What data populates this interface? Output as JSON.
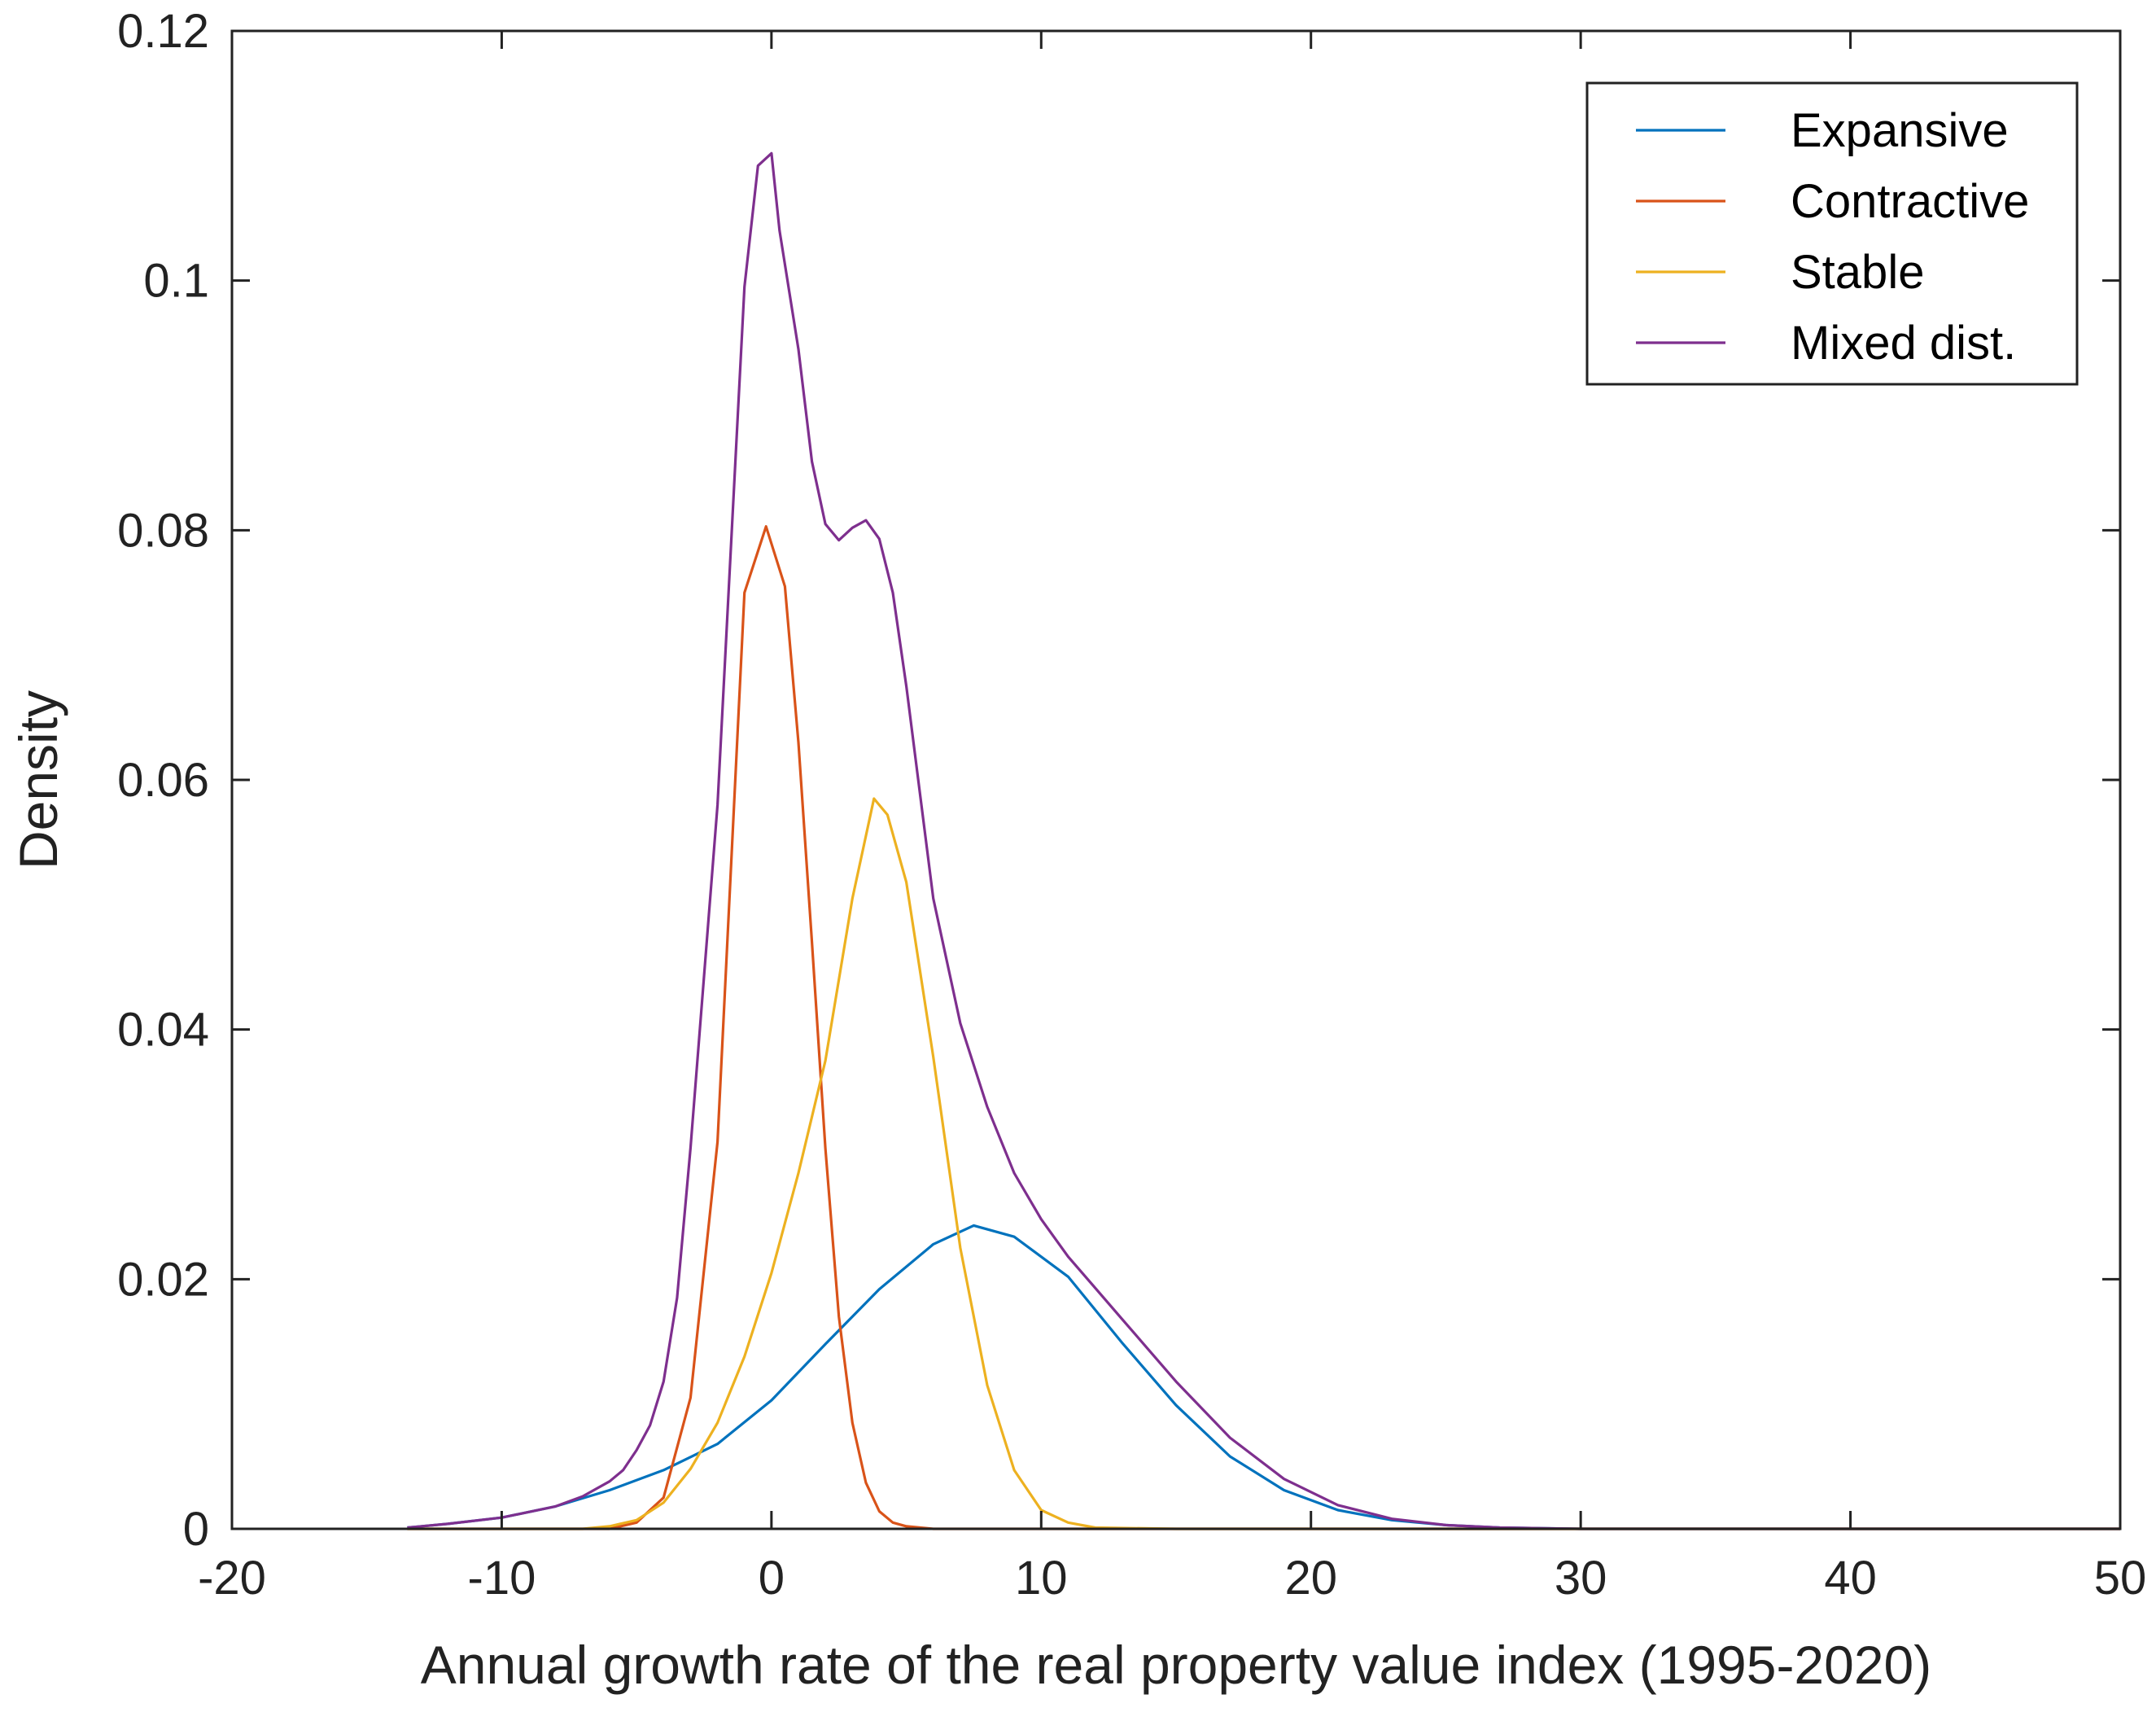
{
  "chart_data": {
    "type": "line",
    "title": "",
    "xlabel": "Annual growth rate of the real property value index (1995-2020)",
    "ylabel": "Density",
    "xlim": [
      -20,
      50
    ],
    "ylim": [
      0,
      0.12
    ],
    "xticks": [
      -20,
      -10,
      0,
      10,
      20,
      30,
      40,
      50
    ],
    "xtick_labels": [
      "-20",
      "-10",
      "0",
      "10",
      "20",
      "30",
      "40",
      "50"
    ],
    "yticks": [
      0,
      0.02,
      0.04,
      0.06,
      0.08,
      0.1,
      0.12
    ],
    "ytick_labels": [
      "0",
      "0.02",
      "0.04",
      "0.06",
      "0.08",
      "0.1",
      "0.12"
    ],
    "grid": false,
    "legend_position": "top-right",
    "series": [
      {
        "name": "Expansive",
        "color": "#0072BD",
        "x": [
          -13.5,
          -12,
          -10,
          -8,
          -6,
          -4,
          -2,
          0,
          2,
          4,
          6,
          7.5,
          9,
          11,
          13,
          15,
          17,
          19,
          21,
          23,
          25,
          27,
          30,
          35,
          40,
          50
        ],
        "y": [
          0.0001,
          0.0004,
          0.0009,
          0.0018,
          0.0031,
          0.0047,
          0.0068,
          0.0103,
          0.0148,
          0.0192,
          0.0228,
          0.0243,
          0.0234,
          0.0202,
          0.0149,
          0.0099,
          0.0058,
          0.0031,
          0.0015,
          0.0007,
          0.0003,
          0.0001,
          0,
          0,
          0,
          0
        ]
      },
      {
        "name": "Contractive",
        "color": "#D95319",
        "x": [
          -13.5,
          -6,
          -5,
          -4,
          -3,
          -2,
          -1,
          -0.2,
          0.5,
          1,
          1.5,
          2,
          2.5,
          3,
          3.5,
          4,
          4.5,
          5,
          6,
          10,
          50
        ],
        "y": [
          0,
          0,
          0.0005,
          0.0025,
          0.0105,
          0.031,
          0.075,
          0.0803,
          0.0755,
          0.063,
          0.047,
          0.0305,
          0.017,
          0.0085,
          0.0037,
          0.0014,
          0.0005,
          0.0002,
          0,
          0,
          0
        ]
      },
      {
        "name": "Stable",
        "color": "#EDB120",
        "x": [
          -13.5,
          -7,
          -6,
          -5,
          -4,
          -3,
          -2,
          -1,
          0,
          1,
          2,
          3,
          3.8,
          4.3,
          5,
          6,
          7,
          8,
          9,
          10,
          11,
          12,
          15,
          50
        ],
        "y": [
          0,
          0,
          0.0002,
          0.0007,
          0.0021,
          0.0048,
          0.0085,
          0.0138,
          0.0205,
          0.0285,
          0.0375,
          0.0505,
          0.0585,
          0.0572,
          0.0518,
          0.0378,
          0.0225,
          0.0115,
          0.0047,
          0.0015,
          0.0005,
          0.0001,
          0,
          0
        ]
      },
      {
        "name": "Mixed dist.",
        "color": "#7E2F8E",
        "x": [
          -13.5,
          -12,
          -10,
          -8,
          -7,
          -6,
          -5.5,
          -5,
          -4.5,
          -4,
          -3.5,
          -3,
          -2,
          -1,
          -0.5,
          0,
          0.3,
          1,
          1.5,
          2,
          2.5,
          3,
          3.5,
          4,
          4.5,
          5,
          6,
          7,
          8,
          9,
          10,
          11,
          12,
          13,
          15,
          17,
          19,
          21,
          23,
          25,
          27,
          30,
          35,
          40,
          50
        ],
        "y": [
          0.0001,
          0.0004,
          0.0009,
          0.0018,
          0.0026,
          0.0038,
          0.0047,
          0.0063,
          0.0083,
          0.0118,
          0.0185,
          0.0305,
          0.058,
          0.0995,
          0.1092,
          0.1102,
          0.104,
          0.0945,
          0.0855,
          0.0805,
          0.0792,
          0.0802,
          0.0808,
          0.0793,
          0.075,
          0.0675,
          0.0505,
          0.0405,
          0.0338,
          0.0285,
          0.0248,
          0.0218,
          0.0193,
          0.0168,
          0.0118,
          0.0073,
          0.004,
          0.0019,
          0.0008,
          0.0003,
          0.0001,
          0,
          0,
          0,
          0
        ]
      }
    ]
  }
}
